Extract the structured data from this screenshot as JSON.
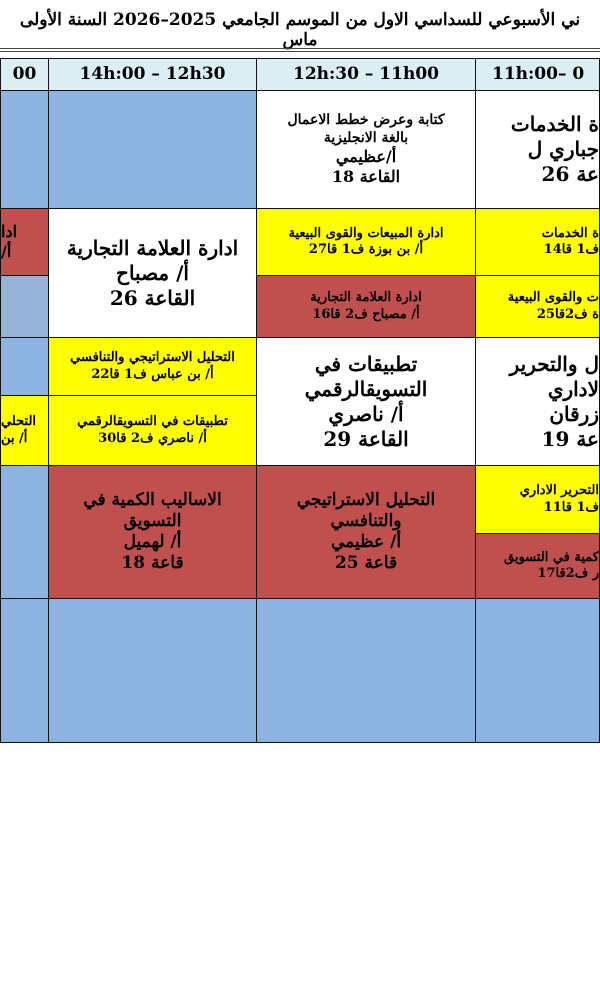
{
  "title": "ني الأسبوعي للسداسي الاول من الموسم الجامعي 2025–2026 السنة الأولى ماس",
  "headers": [
    "00",
    "14h:00   –   12h30",
    "12h:30   –   11h00",
    "11h:00–  0"
  ],
  "colors": {
    "header": "#daeef3",
    "empty": "#8db3e2",
    "yellow": "#ffff00",
    "red": "#c0504d"
  },
  "rows": {
    "r1": {
      "c3": [
        "كتابة وعرض خطط الاعمال",
        "بالغة الانجليزية",
        "أ/عظيمي",
        "القاعة 18"
      ],
      "c4": [
        "ة الخدمات",
        "جباري ل",
        "عة 26"
      ]
    },
    "r2": {
      "c1a": [
        "ادا",
        "أ/"
      ],
      "c2": [
        "ادارة العلامة التجارية",
        "أ/ مصباح",
        "القاعة 26"
      ],
      "c3a": [
        "ادارة المبيعات والقوى البيعية",
        "أ/ بن بوزة      ف1 قا27"
      ],
      "c3b": [
        "ادارة العلامة التجارية",
        "أ/ مصباح  ف2  قا16"
      ],
      "c4a": [
        "ة الخدمات",
        "ف1   قا14"
      ],
      "c4b": [
        "ت والقوى البيعية",
        "ة    ف2قا25"
      ]
    },
    "r3": {
      "c1b": [
        "التحلي",
        "أ/ بن"
      ],
      "c2a": [
        "التحليل الاستراتيجي والتنافسي",
        "أ/ بن عباس     ف1 قا22"
      ],
      "c2b": [
        "تطبيقات في التسويقالرقمي",
        "أ/ ناصري       ف2 قا30"
      ],
      "c3": [
        "تطبيقات في",
        "التسويقالرقمي",
        "أ/ ناصري",
        "القاعة 29"
      ],
      "c4": [
        "ل والتحرير",
        "لاداري",
        "زرقان",
        "عة 19"
      ]
    },
    "r4": {
      "c2": [
        "الاساليب الكمية في",
        "التسويق",
        "أ/ لهميل",
        "قاعة 18"
      ],
      "c3": [
        "التحليل الاستراتيجي",
        "والتنافسي",
        "أ/ عظيمي",
        "قاعة 25"
      ],
      "c4a": [
        "التحرير الاداري",
        "ف1   قا11"
      ],
      "c4b": [
        "كمية في التسويق",
        "ر  ف2قا17"
      ]
    }
  }
}
